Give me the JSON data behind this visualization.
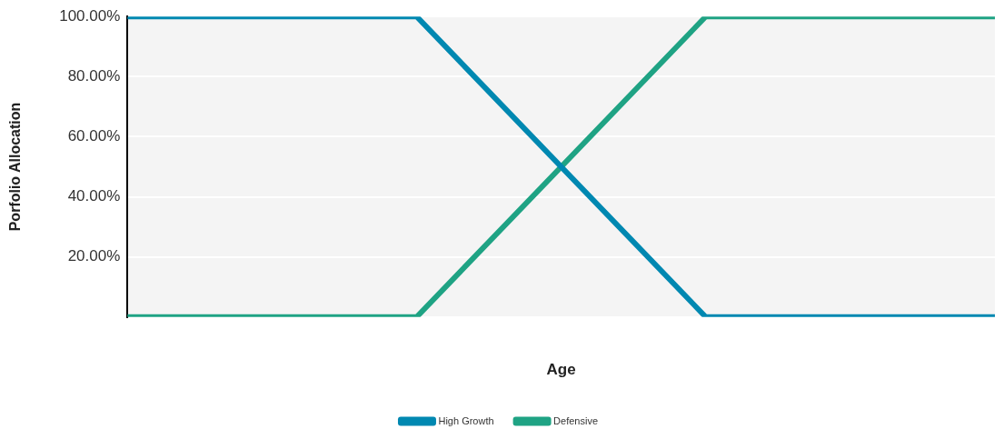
{
  "chart_data": {
    "type": "line",
    "xlabel": "Age",
    "ylabel": "Porfolio Allocation",
    "categories": [
      null,
      null,
      null,
      null
    ],
    "series": [
      {
        "name": "High Growth",
        "color": "#0088b1",
        "values": [
          100,
          100,
          0,
          0
        ]
      },
      {
        "name": "Defensive",
        "color": "#1fa384",
        "values": [
          0,
          0,
          100,
          100
        ]
      }
    ],
    "ylim": [
      0,
      100
    ],
    "yticks": [
      {
        "value": 0,
        "label": null
      },
      {
        "value": 20,
        "label": "20.00%"
      },
      {
        "value": 40,
        "label": "40.00%"
      },
      {
        "value": 60,
        "label": "60.00%"
      },
      {
        "value": 80,
        "label": "80.00%"
      },
      {
        "value": 100,
        "label": "100.00%"
      }
    ],
    "grid": "y",
    "legend": "bottom",
    "marker": "none",
    "line_style": "solid"
  }
}
